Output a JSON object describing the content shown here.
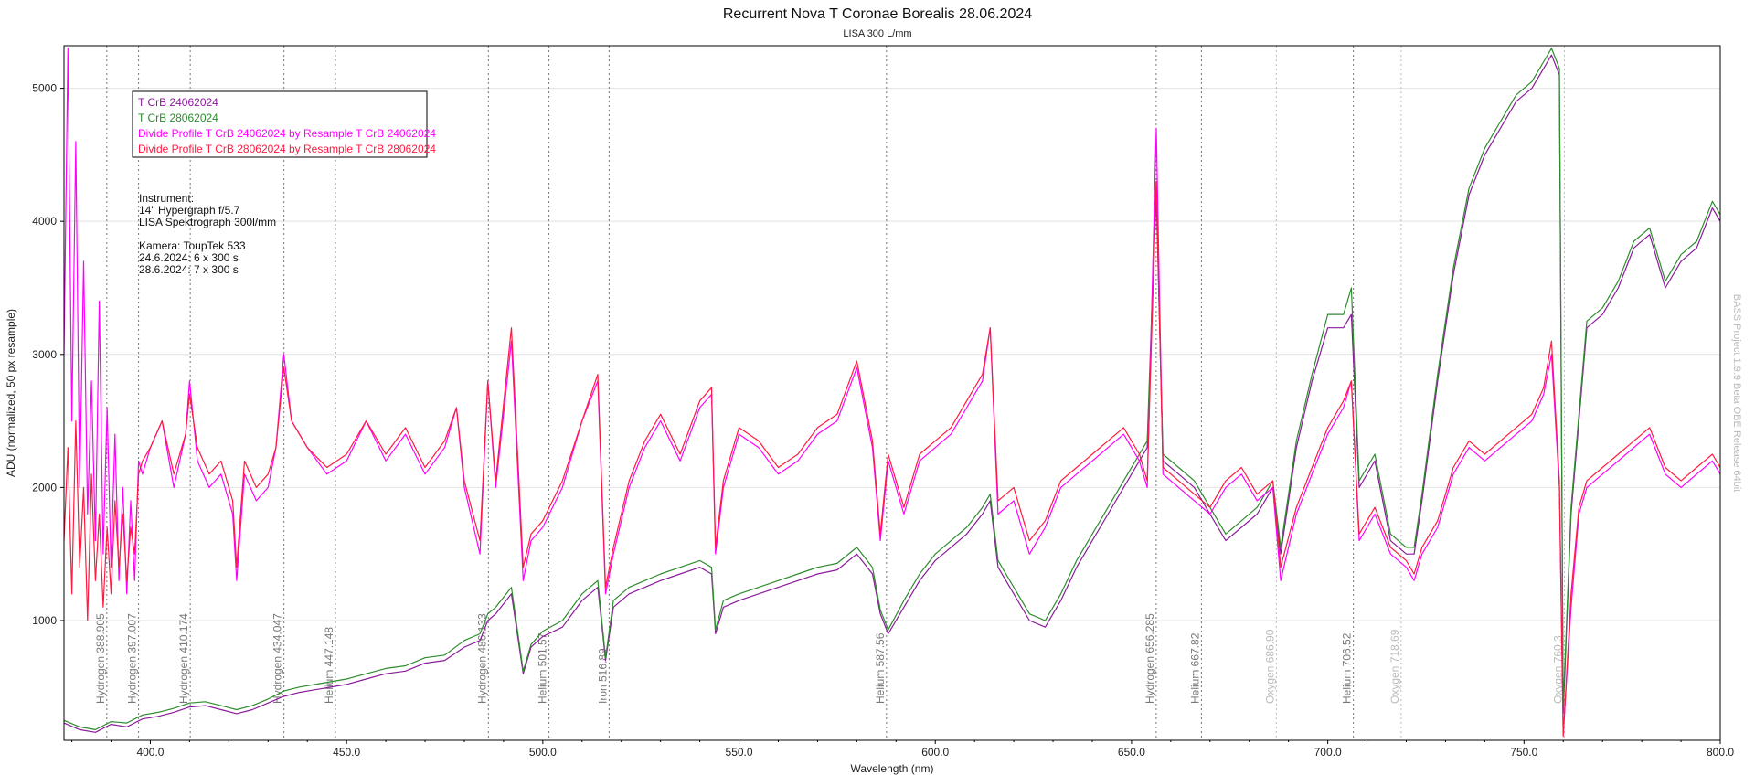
{
  "chart_data": {
    "type": "line",
    "title": "Recurrent Nova T Coronae Borealis  28.06.2024",
    "subtitle": "LISA 300 L/mm",
    "xlabel": "Wavelength (nm)",
    "ylabel": "ADU (normalized, 50 px resample)",
    "xlim": [
      378,
      800
    ],
    "ylim": [
      100,
      5320
    ],
    "xticks": [
      "400.0",
      "450.0",
      "500.0",
      "550.0",
      "600.0",
      "650.0",
      "700.0",
      "750.0",
      "800.0"
    ],
    "xtick_values": [
      400,
      450,
      500,
      550,
      600,
      650,
      700,
      750,
      800
    ],
    "yticks": [
      "1000",
      "2000",
      "3000",
      "4000",
      "5000"
    ],
    "ytick_values": [
      1000,
      2000,
      3000,
      4000,
      5000
    ],
    "grid": true,
    "legend_position": "top-left",
    "line_markers": [
      {
        "wavelength": 388.905,
        "label": "Hydrogen 388.905",
        "color": "#777777"
      },
      {
        "wavelength": 397.007,
        "label": "Hydrogen 397.007",
        "color": "#777777"
      },
      {
        "wavelength": 410.174,
        "label": "Hydrogen 410.174",
        "color": "#777777"
      },
      {
        "wavelength": 434.047,
        "label": "Hydrogen 434.047",
        "color": "#777777"
      },
      {
        "wavelength": 447.148,
        "label": "Helium 447.148",
        "color": "#777777"
      },
      {
        "wavelength": 486.133,
        "label": "Hydrogen 486.133",
        "color": "#777777"
      },
      {
        "wavelength": 501.57,
        "label": "Helium 501.57",
        "color": "#777777"
      },
      {
        "wavelength": 516.89,
        "label": "Iron 516.89",
        "color": "#777777"
      },
      {
        "wavelength": 587.56,
        "label": "Helium 587.56",
        "color": "#777777"
      },
      {
        "wavelength": 656.285,
        "label": "Hydrogen 656.285",
        "color": "#777777"
      },
      {
        "wavelength": 667.82,
        "label": "Helium 667.82",
        "color": "#777777"
      },
      {
        "wavelength": 686.9,
        "label": "Oxygen 686.90",
        "color": "#bbbbbb"
      },
      {
        "wavelength": 706.52,
        "label": "Helium 706.52",
        "color": "#777777"
      },
      {
        "wavelength": 718.69,
        "label": "Oxygen 718.69",
        "color": "#bbbbbb"
      },
      {
        "wavelength": 760.3,
        "label": "Oxygen 760.3",
        "color": "#bbbbbb"
      }
    ],
    "series": [
      {
        "name": "T CrB 24062024",
        "color": "#8B1A9B",
        "x": [
          378,
          382,
          386,
          390,
          394,
          398,
          402,
          406,
          410,
          414,
          418,
          422,
          426,
          430,
          434,
          438,
          442,
          446,
          450,
          455,
          460,
          465,
          470,
          475,
          480,
          484,
          486,
          488,
          492,
          495,
          497,
          500,
          505,
          510,
          514,
          516,
          518,
          522,
          526,
          530,
          535,
          540,
          543,
          544,
          546,
          550,
          555,
          560,
          565,
          570,
          575,
          580,
          584,
          586,
          588,
          592,
          596,
          600,
          604,
          608,
          612,
          614,
          616,
          620,
          624,
          628,
          632,
          636,
          640,
          644,
          648,
          652,
          654,
          656.3,
          658,
          662,
          666,
          670,
          674,
          678,
          682,
          686,
          688,
          692,
          696,
          700,
          704,
          706,
          708,
          712,
          716,
          720,
          722,
          724,
          728,
          732,
          736,
          740,
          744,
          748,
          752,
          755,
          757,
          759,
          760,
          762,
          764,
          766,
          770,
          774,
          778,
          782,
          786,
          790,
          794,
          798,
          800
        ],
        "y": [
          230,
          180,
          160,
          220,
          200,
          260,
          280,
          310,
          350,
          360,
          330,
          300,
          330,
          380,
          430,
          460,
          480,
          500,
          520,
          560,
          600,
          620,
          680,
          700,
          800,
          850,
          1000,
          1050,
          1200,
          600,
          800,
          880,
          950,
          1150,
          1250,
          700,
          1100,
          1200,
          1250,
          1300,
          1350,
          1400,
          1350,
          900,
          1100,
          1150,
          1200,
          1250,
          1300,
          1350,
          1380,
          1500,
          1350,
          1050,
          900,
          1100,
          1300,
          1450,
          1550,
          1650,
          1800,
          1900,
          1400,
          1200,
          1000,
          950,
          1150,
          1400,
          1600,
          1800,
          2000,
          2200,
          2300,
          4200,
          2200,
          2100,
          2000,
          1800,
          1600,
          1700,
          1800,
          2000,
          1500,
          2300,
          2800,
          3200,
          3200,
          3300,
          2000,
          2200,
          1600,
          1500,
          1500,
          1900,
          2800,
          3600,
          4200,
          4500,
          4700,
          4900,
          5000,
          5150,
          5250,
          5100,
          300,
          1800,
          2500,
          3200,
          3300,
          3500,
          3800,
          3900,
          3500,
          3700,
          3800,
          4100,
          4000
        ]
      },
      {
        "name": "T CrB 28062024",
        "color": "#2E8B2E",
        "x": [
          378,
          382,
          386,
          390,
          394,
          398,
          402,
          406,
          410,
          414,
          418,
          422,
          426,
          430,
          434,
          438,
          442,
          446,
          450,
          455,
          460,
          465,
          470,
          475,
          480,
          484,
          486,
          488,
          492,
          495,
          497,
          500,
          505,
          510,
          514,
          516,
          518,
          522,
          526,
          530,
          535,
          540,
          543,
          544,
          546,
          550,
          555,
          560,
          565,
          570,
          575,
          580,
          584,
          586,
          588,
          592,
          596,
          600,
          604,
          608,
          612,
          614,
          616,
          620,
          624,
          628,
          632,
          636,
          640,
          644,
          648,
          652,
          654,
          656.3,
          658,
          662,
          666,
          670,
          674,
          678,
          682,
          686,
          688,
          692,
          696,
          700,
          704,
          706,
          708,
          712,
          716,
          720,
          722,
          724,
          728,
          732,
          736,
          740,
          744,
          748,
          752,
          755,
          757,
          759,
          760,
          762,
          764,
          766,
          770,
          774,
          778,
          782,
          786,
          790,
          794,
          798,
          800
        ],
        "y": [
          250,
          200,
          180,
          240,
          230,
          290,
          310,
          340,
          380,
          390,
          360,
          330,
          360,
          410,
          470,
          500,
          520,
          540,
          560,
          600,
          640,
          660,
          720,
          740,
          850,
          900,
          1050,
          1100,
          1250,
          620,
          820,
          920,
          1000,
          1200,
          1300,
          720,
          1150,
          1250,
          1300,
          1350,
          1400,
          1450,
          1400,
          930,
          1150,
          1200,
          1250,
          1300,
          1350,
          1400,
          1430,
          1550,
          1400,
          1080,
          930,
          1150,
          1350,
          1500,
          1600,
          1700,
          1850,
          1950,
          1450,
          1250,
          1050,
          1000,
          1200,
          1450,
          1650,
          1850,
          2050,
          2250,
          2350,
          4300,
          2250,
          2150,
          2050,
          1850,
          1650,
          1750,
          1850,
          2050,
          1550,
          2350,
          2850,
          3300,
          3300,
          3500,
          2050,
          2250,
          1650,
          1550,
          1550,
          1950,
          2850,
          3650,
          4250,
          4550,
          4750,
          4950,
          5050,
          5200,
          5300,
          5150,
          350,
          1850,
          2550,
          3250,
          3350,
          3550,
          3850,
          3950,
          3550,
          3750,
          3850,
          4150,
          4050
        ]
      },
      {
        "name": "Divide Profile T CrB 24062024  by Resample T CrB 24062024",
        "color": "#FF00FF",
        "x": [
          378,
          379,
          380,
          381,
          382,
          383,
          384,
          385,
          386,
          387,
          388,
          389,
          390,
          391,
          392,
          393,
          394,
          395,
          396,
          397,
          398,
          400,
          403,
          406,
          409,
          410,
          412,
          415,
          418,
          421,
          422,
          424,
          427,
          430,
          432,
          434,
          436,
          440,
          445,
          450,
          455,
          460,
          465,
          470,
          475,
          478,
          480,
          484,
          486,
          488,
          492,
          495,
          497,
          500,
          505,
          510,
          514,
          516,
          518,
          522,
          526,
          530,
          535,
          540,
          543,
          544,
          546,
          550,
          555,
          560,
          565,
          570,
          575,
          580,
          584,
          586,
          588,
          592,
          596,
          600,
          604,
          608,
          612,
          614,
          616,
          620,
          624,
          628,
          632,
          636,
          640,
          644,
          648,
          652,
          654,
          656.3,
          658,
          662,
          666,
          670,
          674,
          678,
          682,
          686,
          688,
          692,
          696,
          700,
          704,
          706,
          708,
          712,
          716,
          720,
          722,
          724,
          728,
          732,
          736,
          740,
          744,
          748,
          752,
          755,
          757,
          759,
          760,
          762,
          764,
          766,
          770,
          774,
          778,
          782,
          786,
          790,
          794,
          798,
          800
        ],
        "y": [
          3000,
          5300,
          2500,
          4600,
          2000,
          3700,
          1800,
          2800,
          1600,
          3400,
          1500,
          2600,
          1400,
          2400,
          1300,
          2000,
          1200,
          1900,
          1300,
          2200,
          2100,
          2300,
          2500,
          2000,
          2400,
          2800,
          2200,
          2000,
          2100,
          1800,
          1300,
          2100,
          1900,
          2000,
          2300,
          3000,
          2500,
          2300,
          2100,
          2200,
          2500,
          2200,
          2400,
          2100,
          2300,
          2600,
          2000,
          1500,
          2800,
          2000,
          3100,
          1300,
          1600,
          1700,
          2000,
          2500,
          2800,
          1200,
          1500,
          2000,
          2300,
          2500,
          2200,
          2600,
          2700,
          1500,
          2000,
          2400,
          2300,
          2100,
          2200,
          2400,
          2500,
          2900,
          2300,
          1600,
          2200,
          1800,
          2200,
          2300,
          2400,
          2600,
          2800,
          3200,
          1800,
          1900,
          1500,
          1700,
          2000,
          2100,
          2200,
          2300,
          2400,
          2200,
          2000,
          4700,
          2100,
          2000,
          1900,
          1800,
          2000,
          2100,
          1900,
          2000,
          1300,
          1800,
          2100,
          2400,
          2600,
          2800,
          1600,
          1800,
          1500,
          1400,
          1300,
          1500,
          1700,
          2100,
          2300,
          2200,
          2300,
          2400,
          2500,
          2700,
          3000,
          2000,
          150,
          1100,
          1800,
          2000,
          2100,
          2200,
          2300,
          2400,
          2100,
          2000,
          2100,
          2200,
          2100
        ]
      },
      {
        "name": "Divide Profile T CrB 28062024  by Resample T CrB 28062024",
        "color": "#FF1A40",
        "x": [
          378,
          379,
          380,
          381,
          382,
          383,
          384,
          385,
          386,
          387,
          388,
          389,
          390,
          391,
          392,
          393,
          394,
          395,
          396,
          397,
          398,
          400,
          403,
          406,
          409,
          410,
          412,
          415,
          418,
          421,
          422,
          424,
          427,
          430,
          432,
          434,
          436,
          440,
          445,
          450,
          455,
          460,
          465,
          470,
          475,
          478,
          480,
          484,
          486,
          488,
          492,
          495,
          497,
          500,
          505,
          510,
          514,
          516,
          518,
          522,
          526,
          530,
          535,
          540,
          543,
          544,
          546,
          550,
          555,
          560,
          565,
          570,
          575,
          580,
          584,
          586,
          588,
          592,
          596,
          600,
          604,
          608,
          612,
          614,
          616,
          620,
          624,
          628,
          632,
          636,
          640,
          644,
          648,
          652,
          654,
          656.3,
          658,
          662,
          666,
          670,
          674,
          678,
          682,
          686,
          688,
          692,
          696,
          700,
          704,
          706,
          708,
          712,
          716,
          720,
          722,
          724,
          728,
          732,
          736,
          740,
          744,
          748,
          752,
          755,
          757,
          759,
          760,
          762,
          764,
          766,
          770,
          774,
          778,
          782,
          786,
          790,
          794,
          798,
          800
        ],
        "y": [
          1600,
          2300,
          1200,
          2500,
          1400,
          2000,
          1000,
          2100,
          1300,
          1800,
          1100,
          1700,
          1200,
          1900,
          1400,
          1800,
          1300,
          1700,
          1500,
          2100,
          2200,
          2300,
          2500,
          2100,
          2400,
          2700,
          2300,
          2100,
          2200,
          1900,
          1400,
          2200,
          2000,
          2100,
          2300,
          2900,
          2500,
          2300,
          2150,
          2250,
          2500,
          2250,
          2450,
          2150,
          2350,
          2600,
          2050,
          1600,
          2800,
          2050,
          3200,
          1400,
          1650,
          1750,
          2050,
          2500,
          2850,
          1250,
          1550,
          2050,
          2350,
          2550,
          2250,
          2650,
          2750,
          1550,
          2050,
          2450,
          2350,
          2150,
          2250,
          2450,
          2550,
          2950,
          2350,
          1650,
          2250,
          1850,
          2250,
          2350,
          2450,
          2650,
          2850,
          3200,
          1900,
          2000,
          1600,
          1750,
          2050,
          2150,
          2250,
          2350,
          2450,
          2250,
          2050,
          4300,
          2150,
          2050,
          1950,
          1850,
          2050,
          2150,
          1950,
          2050,
          1400,
          1850,
          2150,
          2450,
          2650,
          2800,
          1650,
          1850,
          1550,
          1450,
          1350,
          1550,
          1750,
          2150,
          2350,
          2250,
          2350,
          2450,
          2550,
          2750,
          3100,
          2050,
          130,
          1200,
          1850,
          2050,
          2150,
          2250,
          2350,
          2450,
          2150,
          2050,
          2150,
          2250,
          2150
        ]
      }
    ]
  },
  "legend": {
    "items": [
      {
        "label": "T CrB 24062024",
        "color": "#8B1A9B"
      },
      {
        "label": "T CrB 28062024",
        "color": "#2E8B2E"
      },
      {
        "label": "Divide Profile T CrB 24062024  by Resample T CrB 24062024",
        "color": "#FF00FF"
      },
      {
        "label": "Divide Profile T CrB 28062024  by Resample T CrB 28062024",
        "color": "#FF1A40"
      }
    ]
  },
  "notes": {
    "lines": [
      "Instrument:",
      "14\" Hypergraph f/5.7",
      "LISA Spektrograph 300l/mm",
      "",
      "Kamera: ToupTek 533",
      "24.6.2024: 6 x 300 s",
      "28.6.2024: 7 x 300 s"
    ]
  },
  "watermark": "BASS Project 1.9.9 Beta OBE Release 64bit"
}
